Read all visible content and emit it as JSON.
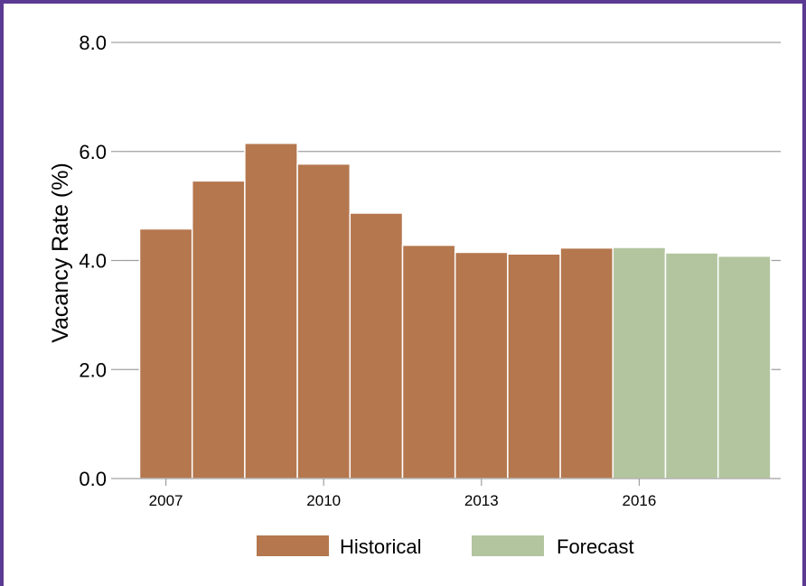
{
  "chart_data": {
    "type": "bar",
    "title": "",
    "xlabel": "",
    "ylabel": "Vacancy Rate (%)",
    "ylim": [
      0,
      8
    ],
    "grid": true,
    "legend_position": "bottom",
    "y_ticks": [
      "0.0",
      "2.0",
      "4.0",
      "6.0",
      "8.0"
    ],
    "x_ticks": [
      {
        "year": 2007,
        "label": "2007"
      },
      {
        "year": 2010,
        "label": "2010"
      },
      {
        "year": 2013,
        "label": "2013"
      },
      {
        "year": 2016,
        "label": "2016"
      }
    ],
    "categories": [
      2007,
      2008,
      2009,
      2010,
      2011,
      2012,
      2013,
      2014,
      2015,
      2016,
      2017,
      2018
    ],
    "series": [
      {
        "name": "Historical",
        "color": "#b5774e",
        "x": [
          2007,
          2008,
          2009,
          2010,
          2011,
          2012,
          2013,
          2014,
          2015
        ],
        "values": [
          4.58,
          5.46,
          6.15,
          5.77,
          4.87,
          4.28,
          4.15,
          4.12,
          4.23
        ]
      },
      {
        "name": "Forecast",
        "color": "#b2c59f",
        "x": [
          2016,
          2017,
          2018
        ],
        "values": [
          4.24,
          4.14,
          4.08
        ]
      }
    ]
  },
  "legend": {
    "historical": "Historical",
    "forecast": "Forecast"
  },
  "colors": {
    "border": "#5b3a94",
    "grid": "#a0a0a0"
  }
}
